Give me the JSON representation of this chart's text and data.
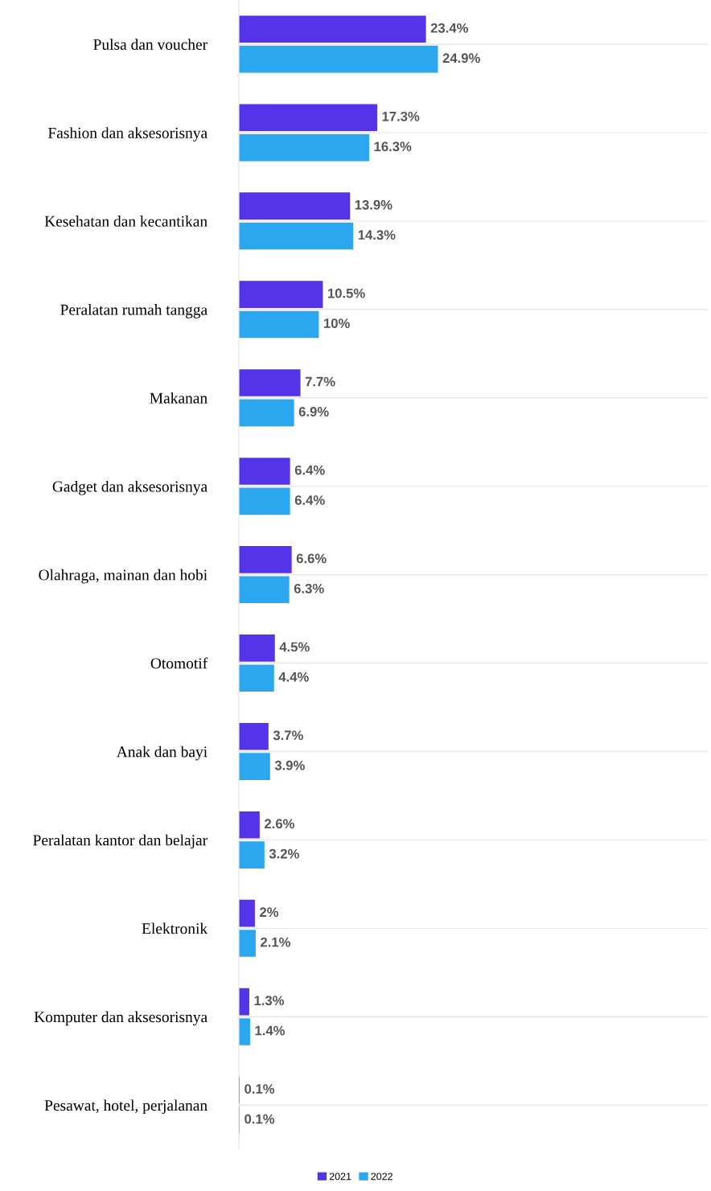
{
  "chart_data": {
    "type": "bar",
    "orientation": "horizontal",
    "categories": [
      "Pulsa dan voucher",
      "Fashion dan aksesorisnya",
      "Kesehatan dan kecantikan",
      "Peralatan rumah tangga",
      "Makanan",
      "Gadget dan aksesorisnya",
      "Olahraga, mainan dan hobi",
      "Otomotif",
      "Anak dan bayi",
      "Peralatan kantor dan belajar",
      "Elektronik",
      "Komputer dan aksesorisnya",
      "Pesawat, hotel, perjalanan"
    ],
    "series": [
      {
        "name": "2021",
        "color": "#5433e8",
        "values": [
          23.4,
          17.3,
          13.9,
          10.5,
          7.7,
          6.4,
          6.6,
          4.5,
          3.7,
          2.6,
          2,
          1.3,
          0.1
        ],
        "value_labels": [
          "23.4%",
          "17.3%",
          "13.9%",
          "10.5%",
          "7.7%",
          "6.4%",
          "6.6%",
          "4.5%",
          "3.7%",
          "2.6%",
          "2%",
          "1.3%",
          "0.1%"
        ]
      },
      {
        "name": "2022",
        "color": "#2aa7ee",
        "values": [
          24.9,
          16.3,
          14.3,
          10,
          6.9,
          6.4,
          6.3,
          4.4,
          3.9,
          3.2,
          2.1,
          1.4,
          0.1
        ],
        "value_labels": [
          "24.9%",
          "16.3%",
          "14.3%",
          "10%",
          "6.9%",
          "6.4%",
          "6.3%",
          "4.4%",
          "3.9%",
          "3.2%",
          "2.1%",
          "1.4%",
          "0.1%"
        ]
      }
    ],
    "xlim": [
      0,
      58.7
    ],
    "tick_labels": "y",
    "grid": "y",
    "legend": "bottom"
  }
}
